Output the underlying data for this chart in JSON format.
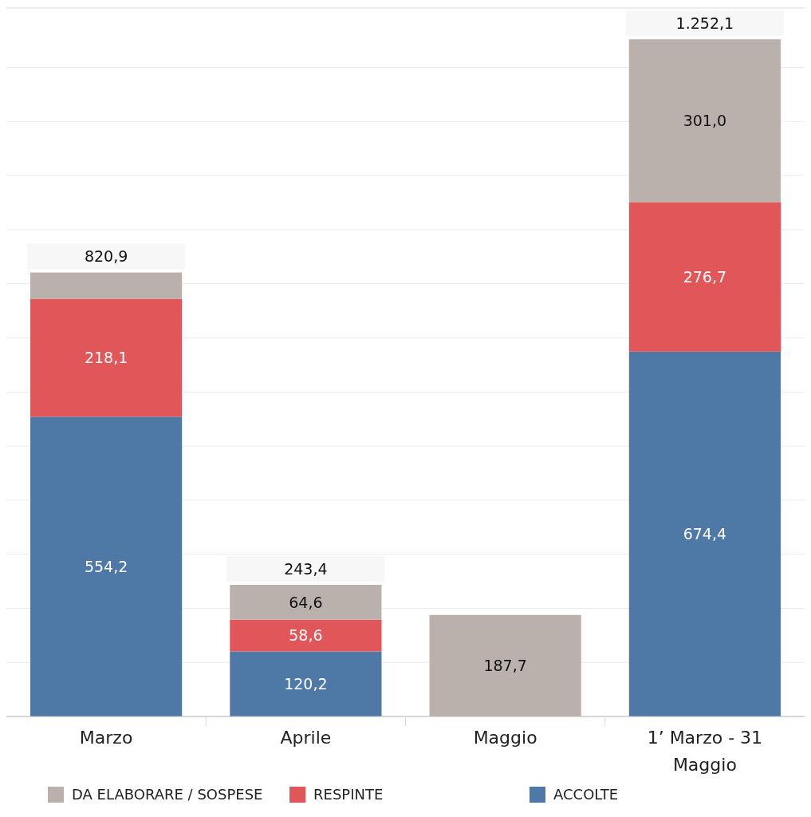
{
  "chart_data": {
    "type": "bar",
    "stacked": true,
    "categories": [
      "Marzo",
      "Aprile",
      "Maggio",
      "1’ Marzo - 31 Maggio"
    ],
    "series": [
      {
        "name": "ACCOLTE",
        "color": "#4e79a7",
        "values": [
          554.2,
          120.2,
          null,
          674.4
        ],
        "value_labels": [
          "554,2",
          "120,2",
          null,
          "674,4"
        ]
      },
      {
        "name": "RESPINTE",
        "color": "#e15759",
        "values": [
          218.1,
          58.6,
          null,
          276.7
        ],
        "value_labels": [
          "218,1",
          "58,6",
          null,
          "276,7"
        ]
      },
      {
        "name": "DA ELABORARE / SOSPESE",
        "color": "#bab0ac",
        "values": [
          48.6,
          64.6,
          187.7,
          301.0
        ],
        "value_labels": [
          null,
          "64,6",
          "187,7",
          "301,0"
        ]
      }
    ],
    "totals": [
      "820,9",
      "243,4",
      null,
      "1.252,1"
    ],
    "ylim": [
      0,
      1310
    ],
    "yticks": [
      {
        "value": 0,
        "label": null
      },
      {
        "value": 100,
        "label": null
      },
      {
        "value": 200,
        "label": null
      },
      {
        "value": 300,
        "label": null
      },
      {
        "value": 400,
        "label": null
      },
      {
        "value": 500,
        "label": null
      },
      {
        "value": 600,
        "label": null
      },
      {
        "value": 700,
        "label": null
      },
      {
        "value": 800,
        "label": null
      },
      {
        "value": 900,
        "label": null
      },
      {
        "value": 1000,
        "label": null
      },
      {
        "value": 1100,
        "label": null
      },
      {
        "value": 1200,
        "label": null
      }
    ],
    "grid": "y",
    "tick_labels": "x",
    "legend": "bottom"
  }
}
